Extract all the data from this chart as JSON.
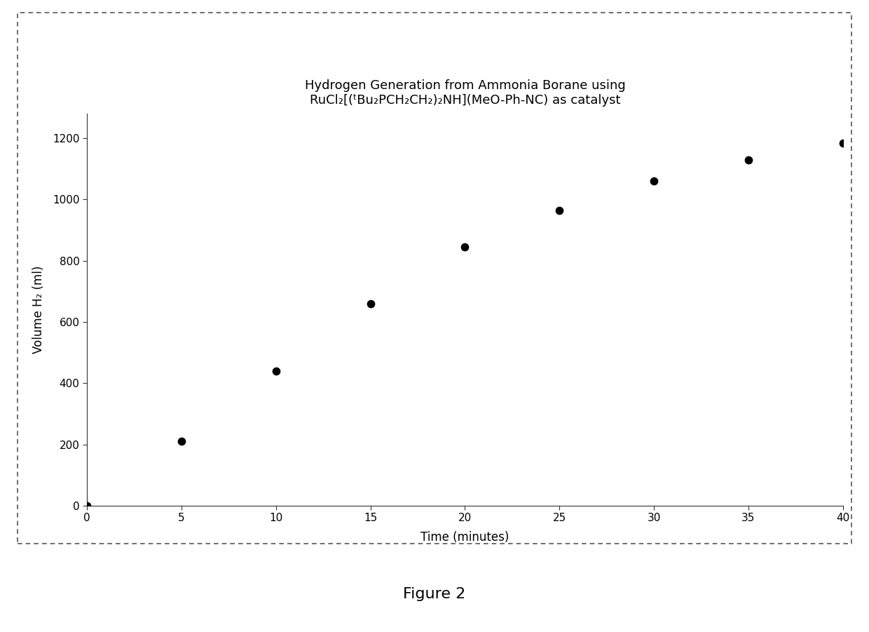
{
  "x": [
    0,
    5,
    10,
    15,
    20,
    25,
    30,
    35,
    40
  ],
  "y": [
    0,
    210,
    440,
    660,
    845,
    965,
    1060,
    1130,
    1185
  ],
  "title_line1": "Hydrogen Generation from Ammonia Borane using",
  "title_line2": "RuCl₂[(ᵗBu₂PCH₂CH₂)₂NH](MeO-Ph-NC) as catalyst",
  "xlabel": "Time (minutes)",
  "ylabel": "Volume H₂ (ml)",
  "xlim": [
    0,
    40
  ],
  "ylim": [
    0,
    1280
  ],
  "xticks": [
    0,
    5,
    10,
    15,
    20,
    25,
    30,
    35,
    40
  ],
  "yticks": [
    0,
    200,
    400,
    600,
    800,
    1000,
    1200
  ],
  "marker_color": "#000000",
  "marker_size": 55,
  "background_color": "#ffffff",
  "figure_caption": "Figure 2",
  "title_fontsize": 13,
  "axis_label_fontsize": 12,
  "tick_fontsize": 11,
  "caption_fontsize": 16,
  "border_color": "#555555",
  "border_lw": 1.2
}
